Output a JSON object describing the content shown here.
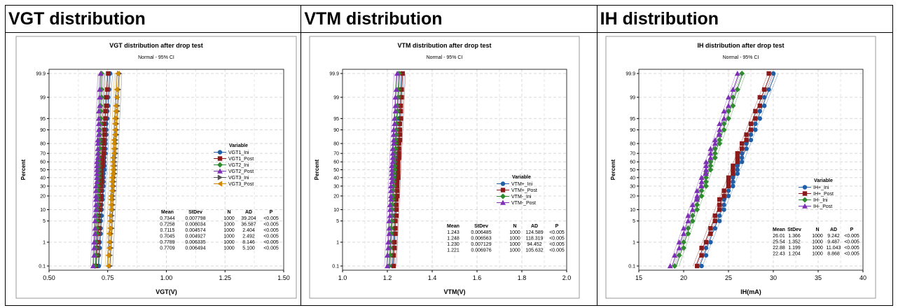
{
  "headers": [
    "VGT distribution",
    "VTM distribution",
    "IH distribution"
  ],
  "chart_data": [
    {
      "type": "scatter",
      "title": "VGT distribution after drop test",
      "subtitle": "Normal - 95% CI",
      "xlabel": "VGT(V)",
      "ylabel": "Percent",
      "xlim": [
        0.5,
        1.5
      ],
      "xticks": [
        0.5,
        0.75,
        1.0,
        1.25,
        1.5
      ],
      "xtick_labels": [
        "0.50",
        "0.75",
        "1.00",
        "1.25",
        "1.50"
      ],
      "yticks": [
        0.1,
        1,
        5,
        10,
        20,
        30,
        40,
        50,
        60,
        70,
        80,
        90,
        95,
        99,
        99.9
      ],
      "ytick_labels": [
        "0.1",
        "1",
        "5",
        "10",
        "20",
        "30",
        "40",
        "50",
        "60",
        "70",
        "80",
        "90",
        "95",
        "99",
        "99.9"
      ],
      "y_scale": "normal probability",
      "grid": true,
      "legend_position": "right",
      "legend_title": "Variable",
      "series": [
        {
          "name": "VGT1_Ini",
          "color": "#1f5fa8",
          "marker": "circle",
          "mean": 0.7344,
          "stdev": 0.007798
        },
        {
          "name": "VGT1_Post",
          "color": "#8b1a1a",
          "marker": "square",
          "mean": 0.7258,
          "stdev": 0.008034
        },
        {
          "name": "VGT2_Ini",
          "color": "#2e8b2e",
          "marker": "diamond",
          "mean": 0.7115,
          "stdev": 0.004574
        },
        {
          "name": "VGT2_Post",
          "color": "#7e2fb5",
          "marker": "triangle",
          "mean": 0.7045,
          "stdev": 0.004927
        },
        {
          "name": "VGT3_Ini",
          "color": "#555555",
          "marker": "triangle-right",
          "mean": 0.7789,
          "stdev": 0.006335
        },
        {
          "name": "VGT3_Post",
          "color": "#d18a00",
          "marker": "triangle-left",
          "mean": 0.7709,
          "stdev": 0.006494
        }
      ],
      "stats_table": {
        "columns": [
          "Mean",
          "StDev",
          "N",
          "AD",
          "P"
        ],
        "rows": [
          [
            "0.7344",
            "0.007798",
            "1000",
            "39.204",
            "<0.005"
          ],
          [
            "0.7258",
            "0.008034",
            "1000",
            "36.587",
            "<0.005"
          ],
          [
            "0.7115",
            "0.004574",
            "1000",
            "2.404",
            "<0.005"
          ],
          [
            "0.7045",
            "0.004927",
            "1000",
            "2.492",
            "<0.005"
          ],
          [
            "0.7789",
            "0.006335",
            "1000",
            "8.146",
            "<0.005"
          ],
          [
            "0.7709",
            "0.006494",
            "1000",
            "5.100",
            "<0.005"
          ]
        ]
      }
    },
    {
      "type": "scatter",
      "title": "VTM distribution after drop test",
      "subtitle": "Normal - 95% CI",
      "xlabel": "VTM(V)",
      "ylabel": "Percent",
      "xlim": [
        1.0,
        2.0
      ],
      "xticks": [
        1.0,
        1.2,
        1.4,
        1.6,
        1.8,
        2.0
      ],
      "xtick_labels": [
        "1.0",
        "1.2",
        "1.4",
        "1.6",
        "1.8",
        "2.0"
      ],
      "yticks": [
        0.1,
        1,
        5,
        10,
        20,
        30,
        40,
        50,
        60,
        70,
        80,
        90,
        95,
        99,
        99.9
      ],
      "ytick_labels": [
        "0.1",
        "1",
        "5",
        "10",
        "20",
        "30",
        "40",
        "50",
        "60",
        "70",
        "80",
        "90",
        "95",
        "99",
        "99.9"
      ],
      "y_scale": "normal probability",
      "grid": true,
      "legend_position": "right",
      "legend_title": "Variable",
      "series": [
        {
          "name": "VTM+_Ini",
          "color": "#1f5fa8",
          "marker": "circle",
          "mean": 1.243,
          "stdev": 0.006485
        },
        {
          "name": "VTM+_Post",
          "color": "#8b1a1a",
          "marker": "square",
          "mean": 1.248,
          "stdev": 0.006563
        },
        {
          "name": "VTM-_Ini",
          "color": "#2e8b2e",
          "marker": "diamond",
          "mean": 1.23,
          "stdev": 0.007129
        },
        {
          "name": "VTM-_Post",
          "color": "#7e2fb5",
          "marker": "triangle",
          "mean": 1.221,
          "stdev": 0.006976
        }
      ],
      "stats_table": {
        "columns": [
          "Mean",
          "StDev",
          "N",
          "AD",
          "P"
        ],
        "rows": [
          [
            "1.243",
            "0.006485",
            "1000",
            "124.589",
            "<0.005"
          ],
          [
            "1.248",
            "0.006563",
            "1000",
            "118.319",
            "<0.005"
          ],
          [
            "1.230",
            "0.007129",
            "1000",
            "94.452",
            "<0.005"
          ],
          [
            "1.221",
            "0.006976",
            "1000",
            "105.632",
            "<0.005"
          ]
        ]
      }
    },
    {
      "type": "scatter",
      "title": "IH distribution after drop test",
      "subtitle": "Normal - 95% CI",
      "xlabel": "IH(mA)",
      "ylabel": "Percent",
      "xlim": [
        15,
        40
      ],
      "xticks": [
        15,
        20,
        25,
        30,
        35,
        40
      ],
      "xtick_labels": [
        "15",
        "20",
        "25",
        "30",
        "35",
        "40"
      ],
      "yticks": [
        0.1,
        1,
        5,
        10,
        20,
        30,
        40,
        50,
        60,
        70,
        80,
        90,
        95,
        99,
        99.9
      ],
      "ytick_labels": [
        "0.1",
        "1",
        "5",
        "10",
        "20",
        "30",
        "40",
        "50",
        "60",
        "70",
        "80",
        "90",
        "95",
        "99",
        "99.9"
      ],
      "y_scale": "normal probability",
      "grid": true,
      "legend_position": "right",
      "legend_title": "Variable",
      "series": [
        {
          "name": "IH+_Ini",
          "color": "#1f5fa8",
          "marker": "circle",
          "mean": 26.01,
          "stdev": 1.366
        },
        {
          "name": "IH+_Post",
          "color": "#8b1a1a",
          "marker": "square",
          "mean": 25.54,
          "stdev": 1.352
        },
        {
          "name": "IH-_Ini",
          "color": "#2e8b2e",
          "marker": "diamond",
          "mean": 22.88,
          "stdev": 1.199
        },
        {
          "name": "IH-_Post",
          "color": "#7e2fb5",
          "marker": "triangle",
          "mean": 22.43,
          "stdev": 1.204
        }
      ],
      "stats_table": {
        "columns": [
          "Mean",
          "StDev",
          "N",
          "AD",
          "P"
        ],
        "rows": [
          [
            "26.01",
            "1.366",
            "1000",
            "9.242",
            "<0.005"
          ],
          [
            "25.54",
            "1.352",
            "1000",
            "9.487",
            "<0.005"
          ],
          [
            "22.88",
            "1.199",
            "1000",
            "11.043",
            "<0.005"
          ],
          [
            "22.43",
            "1.204",
            "1000",
            "8.868",
            "<0.005"
          ]
        ]
      }
    }
  ]
}
